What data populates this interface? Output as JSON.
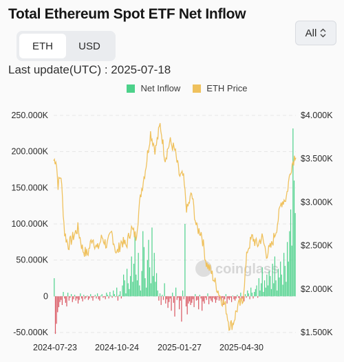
{
  "header": {
    "title": "Total Ethereum Spot ETF Net Inflow",
    "range_select": "All",
    "currency_options": [
      "ETH",
      "USD"
    ],
    "currency_active": "ETH",
    "last_update": "Last update(UTC) : 2025-07-18"
  },
  "watermark": "coinglass",
  "colors": {
    "inflow_positive": "#4cd18a",
    "inflow_negative": "#d9545f",
    "price": "#efc15d"
  },
  "chart_data": {
    "type": "bar+line",
    "legend": [
      "Net Inflow",
      "ETH Price"
    ],
    "legend_position": "top-center",
    "x_tick_labels": [
      "2024-07-23",
      "2024-10-24",
      "2025-01-27",
      "2025-04-30"
    ],
    "x_range": [
      "2024-07-23",
      "2025-07-18"
    ],
    "y_left": {
      "tick_labels": [
        "250.000K",
        "200.000K",
        "150.000K",
        "100.000K",
        "50.000K",
        "0",
        "-50.000K"
      ],
      "ylim": [
        -50000,
        250000
      ]
    },
    "y_right": {
      "tick_labels": [
        "$4.000K",
        "$3.500K",
        "$3.000K",
        "$2.500K",
        "$2.000K",
        "$1.500K"
      ],
      "ylim": [
        1500,
        4000
      ]
    },
    "grid": "horizontal-dashed",
    "net_inflow_ETH": [
      25000,
      -52000,
      -38000,
      -22000,
      -15000,
      -8000,
      -5000,
      -12000,
      6000,
      -3000,
      -9000,
      -14000,
      5000,
      -6000,
      -2000,
      3000,
      -8000,
      -4000,
      2000,
      -6000,
      -3000,
      -10000,
      -5000,
      4000,
      -3000,
      -7000,
      2000,
      -4000,
      -2000,
      1000,
      -5000,
      -3000,
      3000,
      -2000,
      -6000,
      -1000,
      2000,
      -3000,
      4000,
      -4000,
      -6000,
      1000,
      3000,
      -2000,
      -1000,
      -4000,
      5000,
      2000,
      -3000,
      6000,
      1000,
      -2000,
      8000,
      3000,
      -1000,
      12000,
      -6000,
      2000,
      7000,
      -3000,
      15000,
      30000,
      22000,
      4000,
      38000,
      18000,
      10000,
      28000,
      55000,
      20000,
      45000,
      85000,
      30000,
      22000,
      60000,
      15000,
      8000,
      35000,
      90000,
      68000,
      25000,
      12000,
      50000,
      78000,
      40000,
      18000,
      95000,
      28000,
      60000,
      20000,
      32000,
      8000,
      -6000,
      4000,
      -12000,
      2000,
      -5000,
      18000,
      -10000,
      -4000,
      -16000,
      -8000,
      -3000,
      -20000,
      5000,
      -9000,
      -28000,
      12000,
      -5000,
      -2000,
      -18000,
      -6000,
      -35000,
      8000,
      -4000,
      100000,
      -14000,
      -25000,
      -10000,
      -7000,
      -12000,
      -9000,
      -4000,
      -15000,
      3000,
      -6000,
      -5000,
      -18000,
      2000,
      -3000,
      -20000,
      -7000,
      -10000,
      -2000,
      -5000,
      4000,
      -11000,
      -3000,
      -6000,
      -8000,
      -2000,
      -4000,
      -9000,
      -5000,
      -1000,
      -6000,
      -3000,
      -7000,
      -2000,
      -12000,
      -4000,
      3000,
      -10000,
      -3000,
      -5000,
      -2000,
      -8000,
      1000,
      -4000,
      -6000,
      -3000,
      2000,
      -2000,
      -5000,
      5000,
      -3000,
      -4000,
      -7000,
      3000,
      -2000,
      8000,
      4000,
      -4000,
      12000,
      5000,
      -3000,
      6000,
      10000,
      15000,
      -2000,
      25000,
      8000,
      18000,
      40000,
      6000,
      22000,
      12000,
      30000,
      15000,
      35000,
      28000,
      10000,
      45000,
      18000,
      55000,
      22000,
      8000,
      38000,
      26000,
      48000,
      30000,
      16000,
      60000,
      42000,
      20000,
      75000,
      48000,
      90000,
      120000,
      70000,
      232000,
      160000,
      115000
    ]
  }
}
